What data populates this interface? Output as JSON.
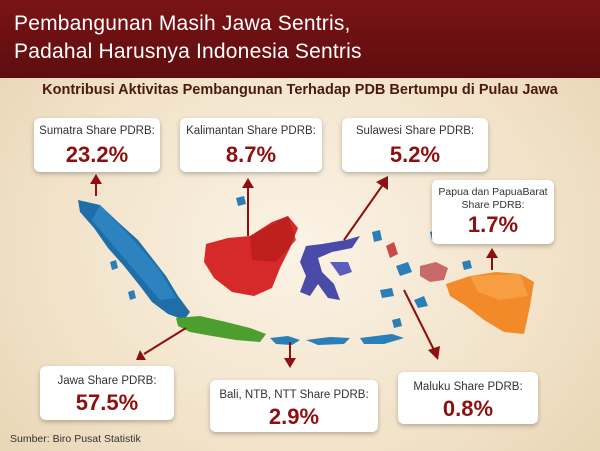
{
  "header": {
    "title_line1": "Pembangunan Masih Jawa Sentris,",
    "title_line2": "Padahal Harusnya Indonesia Sentris"
  },
  "subtitle": "Kontribusi Aktivitas Pembangunan Terhadap PDB Bertumpu di Pulau Jawa",
  "source": "Sumber: Biro Pusat Statistik",
  "colors": {
    "header_bg": "#6b1012",
    "value_text": "#8c1010",
    "sumatra": "#1f6ea8",
    "jawa": "#4c9e2e",
    "kalimantan": "#d62a2a",
    "sulawesi": "#4a4aa8",
    "bali_ntb_ntt": "#2a7fb8",
    "maluku": "#c94848",
    "papua": "#f28a2a",
    "arrow": "#8c1010"
  },
  "chart_data": {
    "type": "table",
    "title": "Kontribusi Aktivitas Pembangunan Terhadap PDB Bertumpu di Pulau Jawa",
    "unit": "%",
    "regions": [
      {
        "name": "Sumatra",
        "label": "Sumatra Share PDRB:",
        "value": 23.2,
        "display": "23.2%"
      },
      {
        "name": "Kalimantan",
        "label": "Kalimantan Share PDRB:",
        "value": 8.7,
        "display": "8.7%"
      },
      {
        "name": "Sulawesi",
        "label": "Sulawesi Share PDRB:",
        "value": 5.2,
        "display": "5.2%"
      },
      {
        "name": "Papua dan PapuaBarat",
        "label": "Papua dan PapuaBarat Share PDRB:",
        "value": 1.7,
        "display": "1.7%"
      },
      {
        "name": "Jawa",
        "label": "Jawa Share PDRB:",
        "value": 57.5,
        "display": "57.5%"
      },
      {
        "name": "Bali, NTB, NTT",
        "label": "Bali, NTB, NTT Share PDRB:",
        "value": 2.9,
        "display": "2.9%"
      },
      {
        "name": "Maluku",
        "label": "Maluku Share PDRB:",
        "value": 0.8,
        "display": "0.8%"
      }
    ]
  }
}
